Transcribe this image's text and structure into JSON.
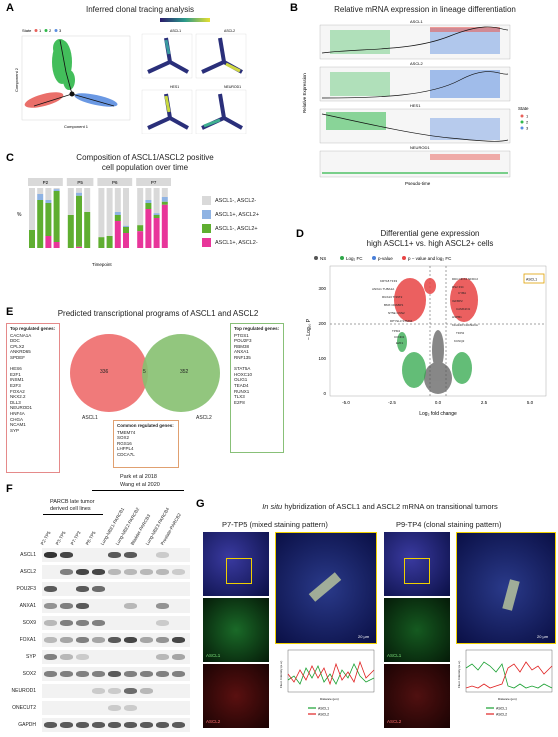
{
  "panels": {
    "A": {
      "letter": "A",
      "title": "Inferred clonal tracing analysis",
      "state_legend": "State",
      "state_values": [
        "1",
        "2",
        "3"
      ],
      "xlab": "Component 1",
      "ylab": "Component 2",
      "sub_titles": [
        "ASCL1",
        "ASCL2",
        "HES1",
        "NEUROD1"
      ],
      "colors": {
        "state1": "#e8605a",
        "state2": "#2fb84a",
        "state3": "#5a8de0"
      }
    },
    "B": {
      "letter": "B",
      "title": "Relative mRNA expression in lineage differentiation",
      "genes": [
        "ASCL1",
        "ASCL2",
        "HES1",
        "NEUROD1"
      ],
      "ylab": "Relative Expression",
      "xlab": "Pseudo-time",
      "legend_title": "State",
      "legend_values": [
        "1",
        "2",
        "3"
      ]
    },
    "C": {
      "letter": "C",
      "title_line1": "Composition of ASCL1/ASCL2 positive",
      "title_line2": "cell population over time",
      "ylab": "%",
      "xlab": "Timepoint",
      "facets": [
        "P2",
        "P5",
        "P6",
        "P7"
      ],
      "legend": [
        {
          "label": "ASCL1-, ASCL2-",
          "color": "#d9d9d9"
        },
        {
          "label": "ASCL1+, ASCL2+",
          "color": "#8fb3e3"
        },
        {
          "label": "ASCL1-, ASCL2+",
          "color": "#5fae30"
        },
        {
          "label": "ASCL1+, ASCL2-",
          "color": "#e8359a"
        }
      ]
    },
    "D": {
      "letter": "D",
      "title_line1": "Differential gene expression",
      "title_line2": "high ASCL1+ vs. high ASCL2+ cells",
      "legend": [
        {
          "label": "NS",
          "color": "#555555"
        },
        {
          "label": "Log₂ FC",
          "color": "#2fa84a"
        },
        {
          "label": "p-value",
          "color": "#4a7fd8"
        },
        {
          "label": "p − value and log₂ FC",
          "color": "#e84545"
        }
      ],
      "ylab": "− Log₁₀ P",
      "xlab": "Log₂ fold change",
      "x_ticks": [
        "-5.0",
        "-2.5",
        "0.0",
        "2.5",
        "5.0"
      ],
      "y_ticks": [
        "0",
        "100",
        "200",
        "300"
      ],
      "highlight_left": "ASCL1",
      "highlight_right": "ASCL1"
    },
    "E": {
      "letter": "E",
      "title": "Predicted transcriptional programs of ASCL1 and ASCL2",
      "left_box_header": "Top regulated genes:",
      "left_genes": [
        "CACNA1A",
        "DDC",
        "CPLX2",
        "ANKRD65",
        "SPDEF",
        "",
        "HES6",
        "E2F1",
        "INSM1",
        "E2F3",
        "FOXA2",
        "NKX2.2",
        "DLL3",
        "NEUROD1",
        "HNF4A",
        "CHGA",
        "NCAM1",
        "SYP"
      ],
      "venn_left_count": "336",
      "venn_overlap_count": "5",
      "venn_right_count": "352",
      "venn_left_label": "ASCL1",
      "venn_right_label": "ASCL2",
      "common_header": "Common regulated genes:",
      "common_genes": [
        "TMEM74",
        "SOX2",
        "RGS16",
        "LHFPL4",
        "CDCA7L"
      ],
      "right_box_header": "Top regulated genes:",
      "right_genes": [
        "PTGS1",
        "POU2F3",
        "RBM38",
        "ANXA1",
        "RNF135",
        "",
        "STAT5A",
        "HOXC10",
        "OLIG1",
        "TEAD4",
        "RUNX1",
        "TLX3",
        "E2F8"
      ]
    },
    "F": {
      "letter": "F",
      "group1_line1": "PARCB late tumor",
      "group1_line2": "derived cell lines",
      "group2_line1": "Park et al 2018",
      "group2_line2": "Wang et al 2020",
      "lanes": [
        "P2-TP5",
        "P3-TP5",
        "P7-TP3",
        "P8-TP5",
        "Lung-NBE1-PARCB1",
        "Lung-NBE2-PARCB2",
        "Bladder-PARCB3",
        "Lung-NBE3-PARCB4",
        "Prostate-PARCB2"
      ],
      "proteins": [
        "ASCL1",
        "ASCL2",
        "POU2F3",
        "ANXA1",
        "SOX9",
        "FOXA1",
        "SYP",
        "SOX2",
        "NEUROD1",
        "ONECUT2",
        "GAPDH"
      ]
    },
    "G": {
      "letter": "G",
      "title_italic": "In situ",
      "title_rest": " hybridization of ASCL1 and ASCL2 mRNA on transitional tumors",
      "left_sub": "P7-TP5  (mixed staining pattern)",
      "right_sub": "P9-TP4 (clonal staining pattern)",
      "channel_green": "ASCL1",
      "channel_red": "ASCL2",
      "scale_label": "20 µm",
      "plot_ylab": "Fluor. Intensity (a.u.)",
      "plot_xlab": "Distance (µm)",
      "legend": [
        "ASCL1",
        "ASCL2"
      ]
    }
  }
}
